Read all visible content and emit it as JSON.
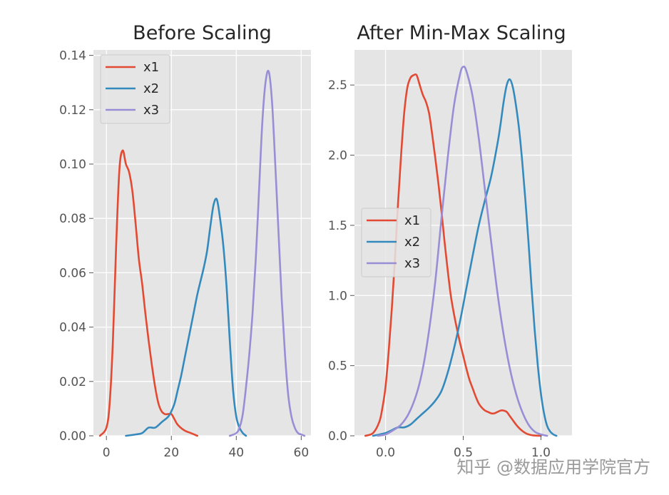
{
  "chart_data": [
    {
      "type": "line",
      "title": "Before Scaling",
      "xlabel": "",
      "ylabel": "",
      "xlim": [
        -4,
        63
      ],
      "ylim": [
        0,
        0.142
      ],
      "xticks": [
        0,
        20,
        40,
        60
      ],
      "xtick_labels": [
        "0",
        "20",
        "40",
        "60"
      ],
      "yticks": [
        0,
        0.02,
        0.04,
        0.06,
        0.08,
        0.1,
        0.12,
        0.14
      ],
      "ytick_labels": [
        "0.00",
        "0.02",
        "0.04",
        "0.06",
        "0.08",
        "0.10",
        "0.12",
        "0.14"
      ],
      "grid": true,
      "legend_position": "top-left",
      "series": [
        {
          "name": "x1",
          "color": "#E24A33",
          "x": [
            -2,
            0,
            1,
            2,
            3,
            4,
            5,
            6,
            7,
            8,
            9,
            10,
            11,
            12,
            13,
            14,
            15,
            16,
            17,
            18,
            19,
            20,
            21,
            22,
            24,
            26,
            28
          ],
          "y": [
            0,
            0.003,
            0.012,
            0.035,
            0.07,
            0.098,
            0.105,
            0.1,
            0.097,
            0.09,
            0.078,
            0.065,
            0.056,
            0.045,
            0.035,
            0.026,
            0.018,
            0.012,
            0.009,
            0.008,
            0.008,
            0.008,
            0.006,
            0.004,
            0.002,
            0.001,
            0
          ]
        },
        {
          "name": "x2",
          "color": "#348ABD",
          "x": [
            6,
            9,
            11,
            13,
            15,
            17,
            19,
            20,
            21,
            22,
            23,
            24,
            25,
            26,
            27,
            28,
            29,
            30,
            31,
            32,
            33,
            34,
            35,
            36,
            37,
            38,
            39,
            40,
            41,
            42,
            43
          ],
          "y": [
            0,
            0.0005,
            0.001,
            0.003,
            0.003,
            0.005,
            0.007,
            0.009,
            0.012,
            0.017,
            0.022,
            0.028,
            0.034,
            0.04,
            0.046,
            0.052,
            0.057,
            0.062,
            0.068,
            0.077,
            0.085,
            0.087,
            0.08,
            0.07,
            0.055,
            0.035,
            0.017,
            0.007,
            0.003,
            0.001,
            0
          ]
        },
        {
          "name": "x3",
          "color": "#988ED5",
          "x": [
            38,
            40,
            41,
            42,
            43,
            44,
            45,
            46,
            47,
            48,
            49,
            50,
            51,
            52,
            53,
            54,
            55,
            56,
            57,
            58,
            59,
            60,
            61
          ],
          "y": [
            0,
            0.001,
            0.003,
            0.008,
            0.018,
            0.03,
            0.045,
            0.065,
            0.09,
            0.115,
            0.13,
            0.134,
            0.123,
            0.1,
            0.075,
            0.05,
            0.03,
            0.015,
            0.007,
            0.003,
            0.001,
            0.0005,
            0
          ]
        }
      ]
    },
    {
      "type": "line",
      "title": "After Min-Max Scaling",
      "xlabel": "",
      "ylabel": "",
      "xlim": [
        -0.2,
        1.2
      ],
      "ylim": [
        0,
        2.75
      ],
      "xticks": [
        0,
        0.5,
        1.0
      ],
      "xtick_labels": [
        "0.0",
        "0.5",
        "1.0"
      ],
      "yticks": [
        0,
        0.5,
        1.0,
        1.5,
        2.0,
        2.5
      ],
      "ytick_labels": [
        "0.0",
        "0.5",
        "1.0",
        "1.5",
        "2.0",
        "2.5"
      ],
      "grid": true,
      "legend_position": "center-left",
      "series": [
        {
          "name": "x1",
          "color": "#E24A33",
          "x": [
            -0.13,
            -0.08,
            -0.04,
            -0.02,
            0.0,
            0.02,
            0.04,
            0.06,
            0.08,
            0.1,
            0.12,
            0.14,
            0.16,
            0.18,
            0.2,
            0.22,
            0.24,
            0.26,
            0.28,
            0.3,
            0.32,
            0.34,
            0.36,
            0.38,
            0.4,
            0.42,
            0.44,
            0.46,
            0.48,
            0.5,
            0.52,
            0.54,
            0.56,
            0.58,
            0.6,
            0.62,
            0.64,
            0.66,
            0.68,
            0.7,
            0.72,
            0.74,
            0.76,
            0.78,
            0.8,
            0.82,
            0.84,
            0.86,
            0.88,
            0.9,
            0.92,
            0.95,
            1.0
          ],
          "y": [
            0,
            0.02,
            0.1,
            0.2,
            0.35,
            0.6,
            0.9,
            1.25,
            1.65,
            2.0,
            2.3,
            2.48,
            2.55,
            2.57,
            2.57,
            2.5,
            2.43,
            2.38,
            2.3,
            2.15,
            1.98,
            1.8,
            1.6,
            1.38,
            1.18,
            1.0,
            0.87,
            0.76,
            0.66,
            0.57,
            0.48,
            0.4,
            0.34,
            0.28,
            0.23,
            0.2,
            0.18,
            0.17,
            0.16,
            0.16,
            0.17,
            0.18,
            0.18,
            0.17,
            0.14,
            0.11,
            0.08,
            0.055,
            0.035,
            0.02,
            0.01,
            0.003,
            0
          ]
        },
        {
          "name": "x2",
          "color": "#348ABD",
          "x": [
            -0.08,
            0.0,
            0.04,
            0.08,
            0.12,
            0.16,
            0.2,
            0.24,
            0.28,
            0.32,
            0.36,
            0.4,
            0.44,
            0.48,
            0.52,
            0.56,
            0.6,
            0.64,
            0.68,
            0.72,
            0.74,
            0.76,
            0.78,
            0.8,
            0.82,
            0.84,
            0.86,
            0.88,
            0.9,
            0.92,
            0.94,
            0.96,
            0.98,
            1.0,
            1.02,
            1.04,
            1.06,
            1.08,
            1.1
          ],
          "y": [
            0,
            0.02,
            0.04,
            0.06,
            0.06,
            0.08,
            0.12,
            0.16,
            0.2,
            0.25,
            0.32,
            0.45,
            0.62,
            0.82,
            1.05,
            1.28,
            1.5,
            1.68,
            1.85,
            2.08,
            2.22,
            2.38,
            2.5,
            2.54,
            2.48,
            2.35,
            2.18,
            1.95,
            1.68,
            1.38,
            1.05,
            0.75,
            0.5,
            0.3,
            0.16,
            0.07,
            0.03,
            0.01,
            0
          ]
        },
        {
          "name": "x3",
          "color": "#988ED5",
          "x": [
            -0.05,
            0.0,
            0.05,
            0.1,
            0.15,
            0.2,
            0.24,
            0.28,
            0.32,
            0.36,
            0.4,
            0.44,
            0.48,
            0.5,
            0.52,
            0.56,
            0.6,
            0.64,
            0.68,
            0.72,
            0.76,
            0.8,
            0.84,
            0.88,
            0.92,
            0.96,
            1.0,
            1.04
          ],
          "y": [
            0,
            0.01,
            0.04,
            0.08,
            0.16,
            0.3,
            0.48,
            0.75,
            1.1,
            1.55,
            1.98,
            2.35,
            2.58,
            2.63,
            2.6,
            2.42,
            2.12,
            1.75,
            1.38,
            1.02,
            0.72,
            0.48,
            0.3,
            0.17,
            0.08,
            0.03,
            0.01,
            0
          ]
        }
      ]
    }
  ],
  "watermark": "知乎 @数据应用学院官方"
}
